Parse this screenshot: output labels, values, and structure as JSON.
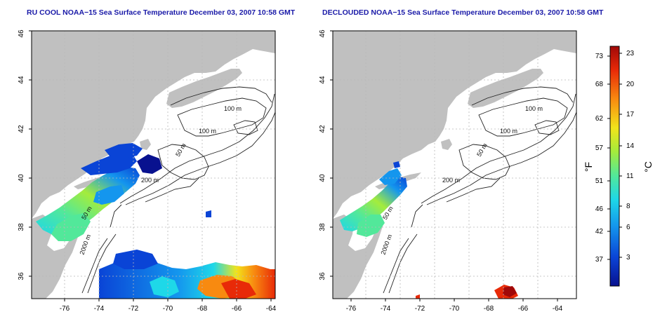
{
  "maps": [
    {
      "title": "RU COOL NOAA−15 Sea Surface Temperature December 03, 2007 10:58 GMT",
      "x_ticks": [
        "-76",
        "-74",
        "-72",
        "-70",
        "-68",
        "-66",
        "-64"
      ],
      "y_ticks": [
        "36",
        "38",
        "40",
        "42",
        "44",
        "46"
      ],
      "contour_labels": [
        "100 m",
        "100 m",
        "50 m",
        "200 m",
        "50 m",
        "2000 m"
      ]
    },
    {
      "title": "DECLOUDED NOAA−15 Sea Surface Temperature December 03, 2007 10:58 GMT",
      "x_ticks": [
        "-76",
        "-74",
        "-72",
        "-70",
        "-68",
        "-66",
        "-64"
      ],
      "y_ticks": [
        "36",
        "38",
        "40",
        "42",
        "44",
        "46"
      ],
      "contour_labels": [
        "100 m",
        "100 m",
        "50 m",
        "200 m",
        "50 m",
        "2000 m"
      ]
    }
  ],
  "colorbar": {
    "f_label": "°F",
    "c_label": "°C",
    "f_ticks": [
      "73",
      "68",
      "62",
      "57",
      "51",
      "46",
      "42",
      "37"
    ],
    "c_ticks": [
      "23",
      "20",
      "17",
      "14",
      "11",
      "8",
      "6",
      "3"
    ]
  },
  "colors": {
    "land": "#c0c0c0",
    "title": "#1a1aa8",
    "grid": "#b8b8b8",
    "scale": [
      "#08118f",
      "#0a44d6",
      "#1496ee",
      "#1ed8e8",
      "#52e89a",
      "#a4ec3c",
      "#f2e41a",
      "#f88a10",
      "#e82a08",
      "#a00808"
    ]
  }
}
